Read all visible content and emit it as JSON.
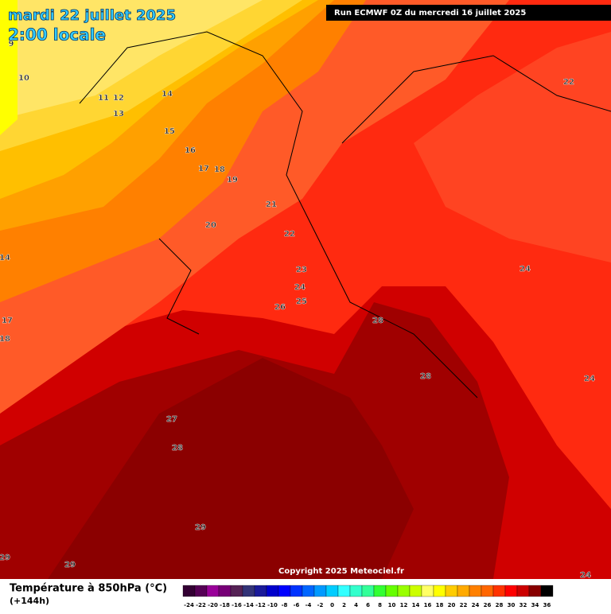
{
  "header": {
    "title": "mardi 22 juillet 2025",
    "subtitle": "2:00 locale",
    "run": "Run ECMWF 0Z du mercredi 16 juillet 2025"
  },
  "copyright": "Copyright 2025 Meteociel.fr",
  "map": {
    "contour_labels": [
      9,
      10,
      11,
      12,
      13,
      14,
      15,
      16,
      17,
      18,
      19,
      20,
      21,
      22,
      22,
      23,
      24,
      25,
      26,
      28,
      28,
      24,
      24,
      14,
      17,
      18,
      27,
      28,
      29,
      29,
      29,
      24
    ]
  },
  "footer": {
    "title": "Température à 850hPa (°C)",
    "lead": "(+144h)"
  },
  "legend": {
    "values": [
      -24,
      -22,
      -20,
      -18,
      -16,
      -14,
      -12,
      -10,
      -8,
      -6,
      -4,
      -2,
      0,
      2,
      4,
      6,
      8,
      10,
      12,
      14,
      16,
      18,
      20,
      22,
      24,
      26,
      28,
      30,
      32,
      34,
      36
    ],
    "colors": [
      "#330033",
      "#550055",
      "#990099",
      "#770077",
      "#552255",
      "#333377",
      "#1a1a99",
      "#0000cc",
      "#0000ff",
      "#0033ff",
      "#0066ff",
      "#0099ff",
      "#00ccff",
      "#33ffff",
      "#33ffcc",
      "#33ff99",
      "#33ff33",
      "#66ff00",
      "#99ff00",
      "#ccff00",
      "#ffff66",
      "#ffff00",
      "#ffcc00",
      "#ffaa00",
      "#ff8000",
      "#ff6600",
      "#ff3300",
      "#ff0000",
      "#cc0000",
      "#880000",
      "#000000"
    ]
  }
}
